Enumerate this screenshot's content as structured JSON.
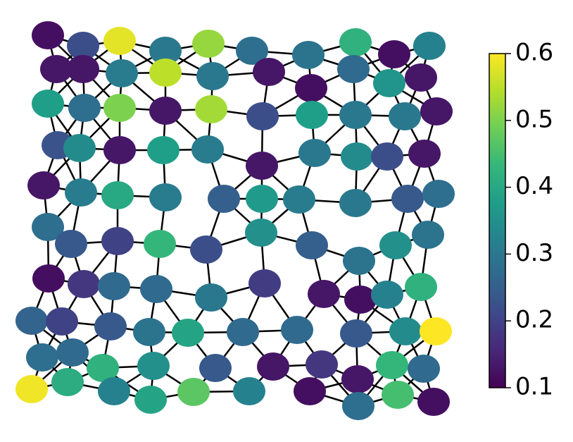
{
  "chart_data": {
    "type": "network",
    "colormap": "viridis",
    "clim": [
      0.1,
      0.6
    ],
    "cticks": [
      0.1,
      0.2,
      0.3,
      0.4,
      0.5,
      0.6
    ],
    "values": [
      0.12,
      0.22,
      0.58,
      0.3,
      0.52,
      0.28,
      0.29,
      0.42,
      0.12,
      0.32,
      0.13,
      0.13,
      0.31,
      0.55,
      0.3,
      0.13,
      0.12,
      0.27,
      0.36,
      0.13,
      0.38,
      0.28,
      0.5,
      0.13,
      0.53,
      0.22,
      0.38,
      0.3,
      0.3,
      0.13,
      0.23,
      0.34,
      0.13,
      0.38,
      0.31,
      0.13,
      0.3,
      0.34,
      0.22,
      0.13,
      0.13,
      0.31,
      0.4,
      0.31,
      0.25,
      0.37,
      0.31,
      0.3,
      0.24,
      0.28,
      0.28,
      0.24,
      0.2,
      0.43,
      0.22,
      0.35,
      0.25,
      0.29,
      0.35,
      0.29,
      0.12,
      0.18,
      0.27,
      0.27,
      0.3,
      0.19,
      0.13,
      0.12,
      0.32,
      0.42,
      0.26,
      0.2,
      0.24,
      0.29,
      0.39,
      0.27,
      0.27,
      0.24,
      0.34,
      0.6,
      0.28,
      0.27,
      0.42,
      0.35,
      0.24,
      0.13,
      0.18,
      0.13,
      0.43,
      0.27,
      0.59,
      0.41,
      0.32,
      0.39,
      0.47,
      0.32,
      0.12,
      0.28,
      0.45,
      0.12
    ]
  }
}
